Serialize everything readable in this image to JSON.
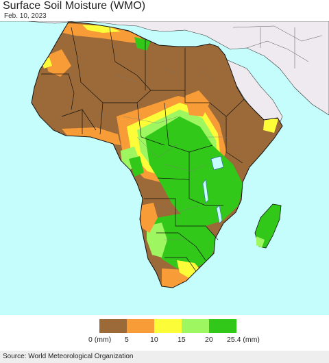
{
  "header": {
    "title": "Surface Soil Moisture (WMO)",
    "date": "Feb. 10, 2023"
  },
  "map": {
    "region": "Africa",
    "ocean_color": "#c5fcfc",
    "outside_land_color": "#eeeaef",
    "border_color": "#111111"
  },
  "legend": {
    "units": "(mm)",
    "bins": [
      {
        "from": 0,
        "to": 5,
        "color": "#9b6a38"
      },
      {
        "from": 5,
        "to": 10,
        "color": "#f89c38"
      },
      {
        "from": 10,
        "to": 15,
        "color": "#fcfc38"
      },
      {
        "from": 15,
        "to": 20,
        "color": "#9ef660"
      },
      {
        "from": 20,
        "to": 25.4,
        "color": "#32c81a"
      }
    ],
    "ticks": [
      "0 (mm)",
      "5",
      "10",
      "15",
      "20",
      "25.4 (mm)"
    ]
  },
  "footer": {
    "source": "Source: World Meteorological Organization"
  }
}
